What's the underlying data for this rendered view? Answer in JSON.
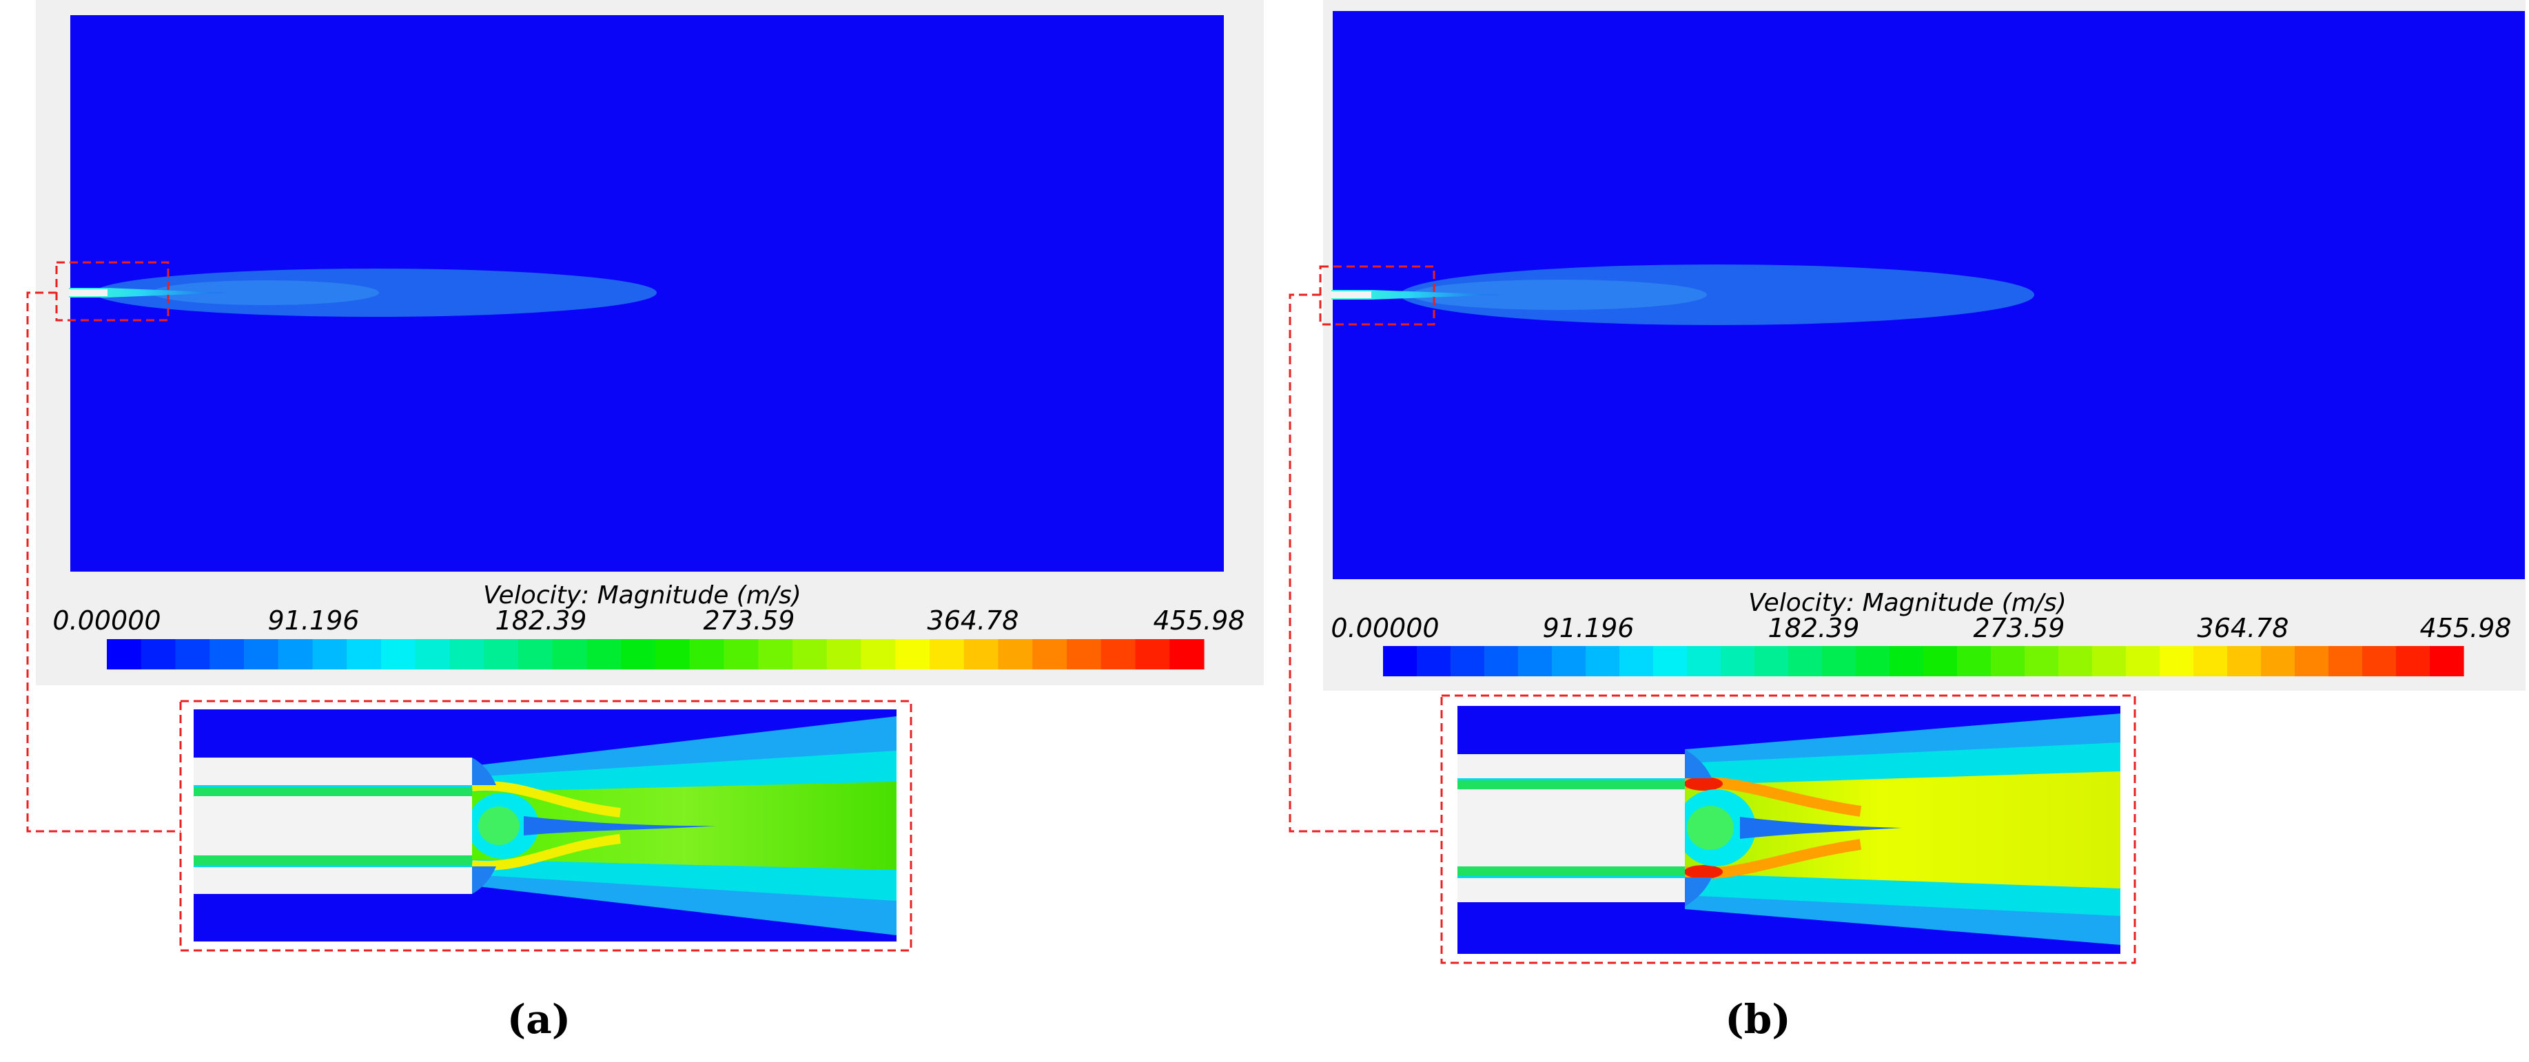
{
  "colors": {
    "domain": "#0a05f7",
    "plume_outer": "#1f64ee",
    "plume_inner": "#2b7ff0",
    "nozzle_wall": "#f3f3f3",
    "frame_bg": "#f0f0f0",
    "zoom_box": "#e82020"
  },
  "colorbar": {
    "title": "Velocity: Magnitude (m/s)",
    "ticks": [
      "0.00000",
      "91.196",
      "182.39",
      "273.59",
      "364.78",
      "455.98"
    ],
    "min": 0.0,
    "max": 455.98,
    "levels": 32
  },
  "panels": [
    {
      "id": "a",
      "caption": "(a)",
      "colorbar_title": "Velocity: Magnitude (m/s)",
      "ticks": [
        "0.00000",
        "91.196",
        "182.39",
        "273.59",
        "364.78",
        "455.98"
      ]
    },
    {
      "id": "b",
      "caption": "(b)",
      "colorbar_title": "Velocity: Magnitude (m/s)",
      "ticks": [
        "0.00000",
        "91.196",
        "182.39",
        "273.59",
        "364.78",
        "455.98"
      ]
    }
  ]
}
